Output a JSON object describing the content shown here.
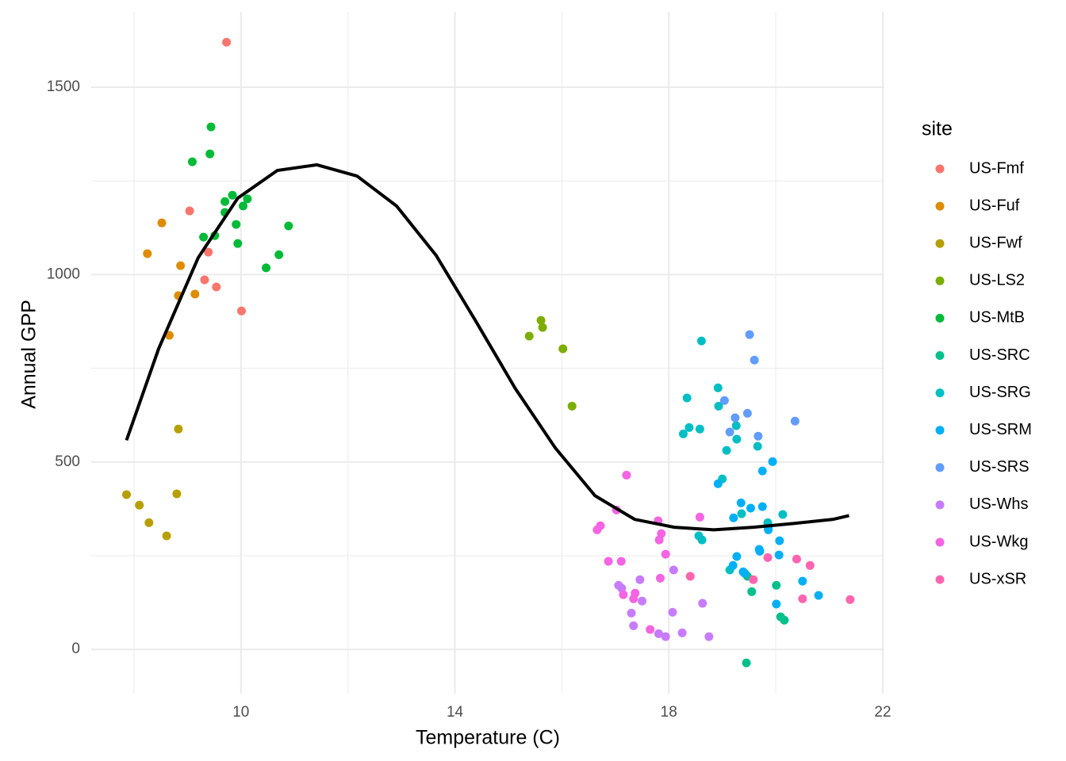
{
  "chart_data": {
    "type": "scatter",
    "xlabel": "Temperature (C)",
    "ylabel": "Annual GPP",
    "legend_title": "site",
    "xlim": [
      7.2,
      22.03
    ],
    "ylim": [
      -118,
      1701
    ],
    "xticks": [
      10,
      14,
      18,
      22
    ],
    "yticks": [
      0,
      500,
      1000,
      1500
    ],
    "xminor": [
      8,
      12,
      16,
      20
    ],
    "yminor": [
      250,
      750,
      1250
    ],
    "grid": true,
    "legend": "right",
    "trend": {
      "color": "#000000",
      "x": [
        7.86,
        8.46,
        9.2,
        9.94,
        10.68,
        11.42,
        12.17,
        12.91,
        13.65,
        14.39,
        15.13,
        15.88,
        16.62,
        17.36,
        18.1,
        18.84,
        19.58,
        20.33,
        21.07,
        21.37
      ],
      "values": [
        558,
        802,
        1045,
        1204,
        1278,
        1293,
        1263,
        1183,
        1051,
        876,
        696,
        537,
        410,
        347,
        326,
        319,
        326,
        336,
        347,
        357
      ]
    },
    "series": [
      {
        "name": "US-Fmf",
        "color": "#F8766D",
        "x": [
          9.73,
          9.04,
          9.39,
          9.32,
          9.54,
          10.01
        ],
        "values": [
          1620,
          1170,
          1060,
          986,
          967,
          903
        ]
      },
      {
        "name": "US-Fuf",
        "color": "#DE8C00",
        "x": [
          8.52,
          8.25,
          8.87,
          8.83,
          9.14,
          8.66
        ],
        "values": [
          1138,
          1056,
          1024,
          944,
          948,
          838
        ]
      },
      {
        "name": "US-Fwf",
        "color": "#B79F00",
        "x": [
          7.86,
          8.1,
          8.28,
          8.61,
          8.83,
          8.8
        ],
        "values": [
          413,
          385,
          338,
          303,
          588,
          415
        ]
      },
      {
        "name": "US-LS2",
        "color": "#7CAE00",
        "x": [
          15.39,
          15.61,
          15.64,
          16.02,
          16.19
        ],
        "values": [
          836,
          878,
          859,
          802,
          649
        ]
      },
      {
        "name": "US-MtB",
        "color": "#00BA38",
        "x": [
          9.44,
          9.42,
          9.09,
          9.84,
          9.7,
          10.12,
          10.04,
          9.7,
          9.91,
          10.89,
          9.51,
          9.3,
          9.94,
          10.71,
          10.47
        ],
        "values": [
          1394,
          1322,
          1301,
          1212,
          1195,
          1202,
          1183,
          1166,
          1134,
          1130,
          1104,
          1100,
          1083,
          1053,
          1018
        ]
      },
      {
        "name": "US-SRC",
        "color": "#00C08B",
        "x": [
          19.45,
          19.55,
          20.01,
          20.09,
          20.16,
          19.47
        ],
        "values": [
          -36,
          154,
          171,
          87,
          78,
          195
        ]
      },
      {
        "name": "US-SRG",
        "color": "#00BFC4",
        "x": [
          18.61,
          18.92,
          18.34,
          18.93,
          19.26,
          18.38,
          18.58,
          18.27,
          19.27,
          19.66,
          19.0,
          19.08,
          19.36,
          19.85,
          20.13,
          18.56,
          18.62,
          19.14,
          19.86
        ],
        "values": [
          823,
          698,
          671,
          649,
          597,
          592,
          588,
          575,
          561,
          542,
          455,
          531,
          362,
          338,
          360,
          303,
          292,
          212,
          324
        ]
      },
      {
        "name": "US-SRM",
        "color": "#00B0F6",
        "x": [
          19.94,
          19.75,
          18.92,
          19.35,
          19.53,
          19.75,
          19.21,
          19.86,
          20.07,
          19.69,
          19.7,
          19.27,
          20.06,
          19.2,
          19.39,
          19.42,
          20.5,
          20.01,
          20.8
        ],
        "values": [
          501,
          476,
          442,
          391,
          377,
          381,
          351,
          319,
          290,
          267,
          262,
          248,
          252,
          224,
          207,
          203,
          182,
          121,
          144
        ]
      },
      {
        "name": "US-SRS",
        "color": "#619CFF",
        "x": [
          19.51,
          19.6,
          20.36,
          19.47,
          19.24,
          19.04,
          19.67,
          19.14
        ],
        "values": [
          840,
          772,
          609,
          630,
          618,
          664,
          569,
          580
        ]
      },
      {
        "name": "US-Whs",
        "color": "#C77CFF",
        "x": [
          18.09,
          17.46,
          17.5,
          17.3,
          17.34,
          18.07,
          17.81,
          17.94,
          18.25,
          18.75,
          18.63,
          17.06,
          17.12
        ],
        "values": [
          212,
          186,
          129,
          97,
          63,
          99,
          42,
          34,
          44,
          34,
          123,
          171,
          163
        ]
      },
      {
        "name": "US-Wkg",
        "color": "#F564E3",
        "x": [
          17.21,
          17.02,
          16.72,
          16.66,
          16.87,
          17.11,
          17.8,
          17.86,
          17.82,
          17.94,
          17.84,
          17.15,
          17.37,
          17.34,
          17.65,
          18.58
        ],
        "values": [
          465,
          372,
          330,
          319,
          235,
          235,
          343,
          309,
          292,
          254,
          190,
          146,
          150,
          135,
          53,
          353
        ]
      },
      {
        "name": "US-xSR",
        "color": "#FF64B0",
        "x": [
          18.4,
          19.58,
          19.85,
          20.39,
          20.64,
          20.5,
          21.39
        ],
        "values": [
          195,
          186,
          245,
          241,
          224,
          135,
          133
        ]
      }
    ]
  }
}
